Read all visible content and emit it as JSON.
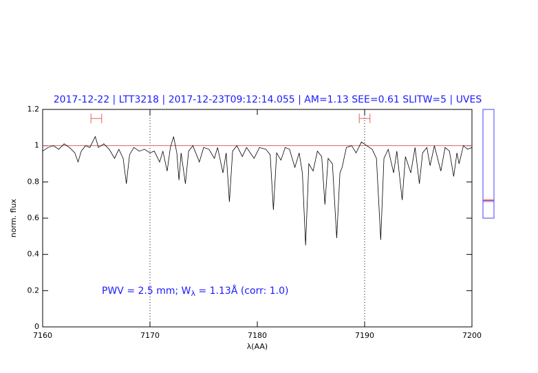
{
  "chart_data": {
    "type": "line",
    "title": "2017-12-22 | LTT3218 | 2017-12-23T09:12:14.055 | AM=1.13  SEE=0.61  SLITW=5 | UVES",
    "x_label": "λ(AA)",
    "y_label": "norm. flux",
    "annotation": {
      "before": "PWV = 2.5 mm; W",
      "subscript": "λ",
      "after": " = 1.13Å (corr: 1.0)"
    },
    "xlim": [
      7160,
      7200
    ],
    "ylim": [
      0,
      1.2
    ],
    "xticks": [
      7160,
      7170,
      7180,
      7190,
      7200
    ],
    "yticks": [
      0,
      0.2,
      0.4,
      0.6,
      0.8,
      1,
      1.2
    ],
    "color": "#000000",
    "x": [
      7160.0,
      7160.5,
      7161.0,
      7161.5,
      7162.0,
      7162.5,
      7163.0,
      7163.3,
      7163.6,
      7164.0,
      7164.4,
      7164.9,
      7165.2,
      7165.7,
      7166.2,
      7166.7,
      7167.1,
      7167.5,
      7167.8,
      7168.1,
      7168.5,
      7169.0,
      7169.5,
      7170.0,
      7170.4,
      7170.9,
      7171.2,
      7171.6,
      7171.9,
      7172.2,
      7172.5,
      7172.7,
      7172.9,
      7173.3,
      7173.6,
      7174.0,
      7174.6,
      7175.0,
      7175.5,
      7176.0,
      7176.3,
      7176.8,
      7177.1,
      7177.4,
      7177.7,
      7178.1,
      7178.6,
      7179.0,
      7179.7,
      7180.2,
      7180.8,
      7181.2,
      7181.5,
      7181.8,
      7182.2,
      7182.6,
      7183.0,
      7183.5,
      7183.9,
      7184.2,
      7184.5,
      7184.8,
      7185.2,
      7185.6,
      7186.0,
      7186.3,
      7186.6,
      7187.0,
      7187.4,
      7187.7,
      7187.9,
      7188.3,
      7188.8,
      7189.2,
      7189.7,
      7190.2,
      7190.7,
      7191.1,
      7191.5,
      7191.8,
      7192.2,
      7192.7,
      7193.0,
      7193.5,
      7193.8,
      7194.3,
      7194.7,
      7195.1,
      7195.4,
      7195.8,
      7196.1,
      7196.5,
      7197.1,
      7197.5,
      7197.9,
      7198.3,
      7198.6,
      7198.8,
      7199.2,
      7199.6,
      7200.0
    ],
    "values": [
      0.97,
      0.99,
      1.0,
      0.98,
      1.01,
      0.99,
      0.96,
      0.91,
      0.97,
      1.0,
      0.99,
      1.05,
      0.99,
      1.01,
      0.98,
      0.93,
      0.98,
      0.93,
      0.79,
      0.95,
      0.99,
      0.97,
      0.98,
      0.96,
      0.97,
      0.91,
      0.97,
      0.86,
      0.99,
      1.05,
      0.96,
      0.81,
      0.96,
      0.79,
      0.97,
      1.0,
      0.91,
      0.99,
      0.98,
      0.93,
      0.99,
      0.85,
      0.96,
      0.69,
      0.97,
      1.0,
      0.94,
      0.99,
      0.93,
      0.99,
      0.98,
      0.95,
      0.645,
      0.96,
      0.92,
      0.99,
      0.98,
      0.88,
      0.96,
      0.85,
      0.45,
      0.9,
      0.86,
      0.97,
      0.94,
      0.675,
      0.93,
      0.9,
      0.49,
      0.85,
      0.88,
      0.99,
      1.0,
      0.96,
      1.02,
      1.0,
      0.98,
      0.93,
      0.48,
      0.93,
      0.98,
      0.85,
      0.97,
      0.7,
      0.94,
      0.85,
      0.99,
      0.79,
      0.96,
      0.99,
      0.89,
      1.0,
      0.86,
      0.99,
      0.97,
      0.83,
      0.96,
      0.9,
      1.0,
      0.98,
      0.99
    ],
    "reference_line": {
      "y": 1,
      "color": "#e06060"
    },
    "vlines": [
      7170,
      7190
    ],
    "markers": [
      {
        "x": [
          7164.5,
          7165.5
        ],
        "y": 1.15,
        "color": "#e06060"
      },
      {
        "x": [
          7189.5,
          7190.5
        ],
        "y": 1.15,
        "color": "#e06060"
      }
    ]
  }
}
